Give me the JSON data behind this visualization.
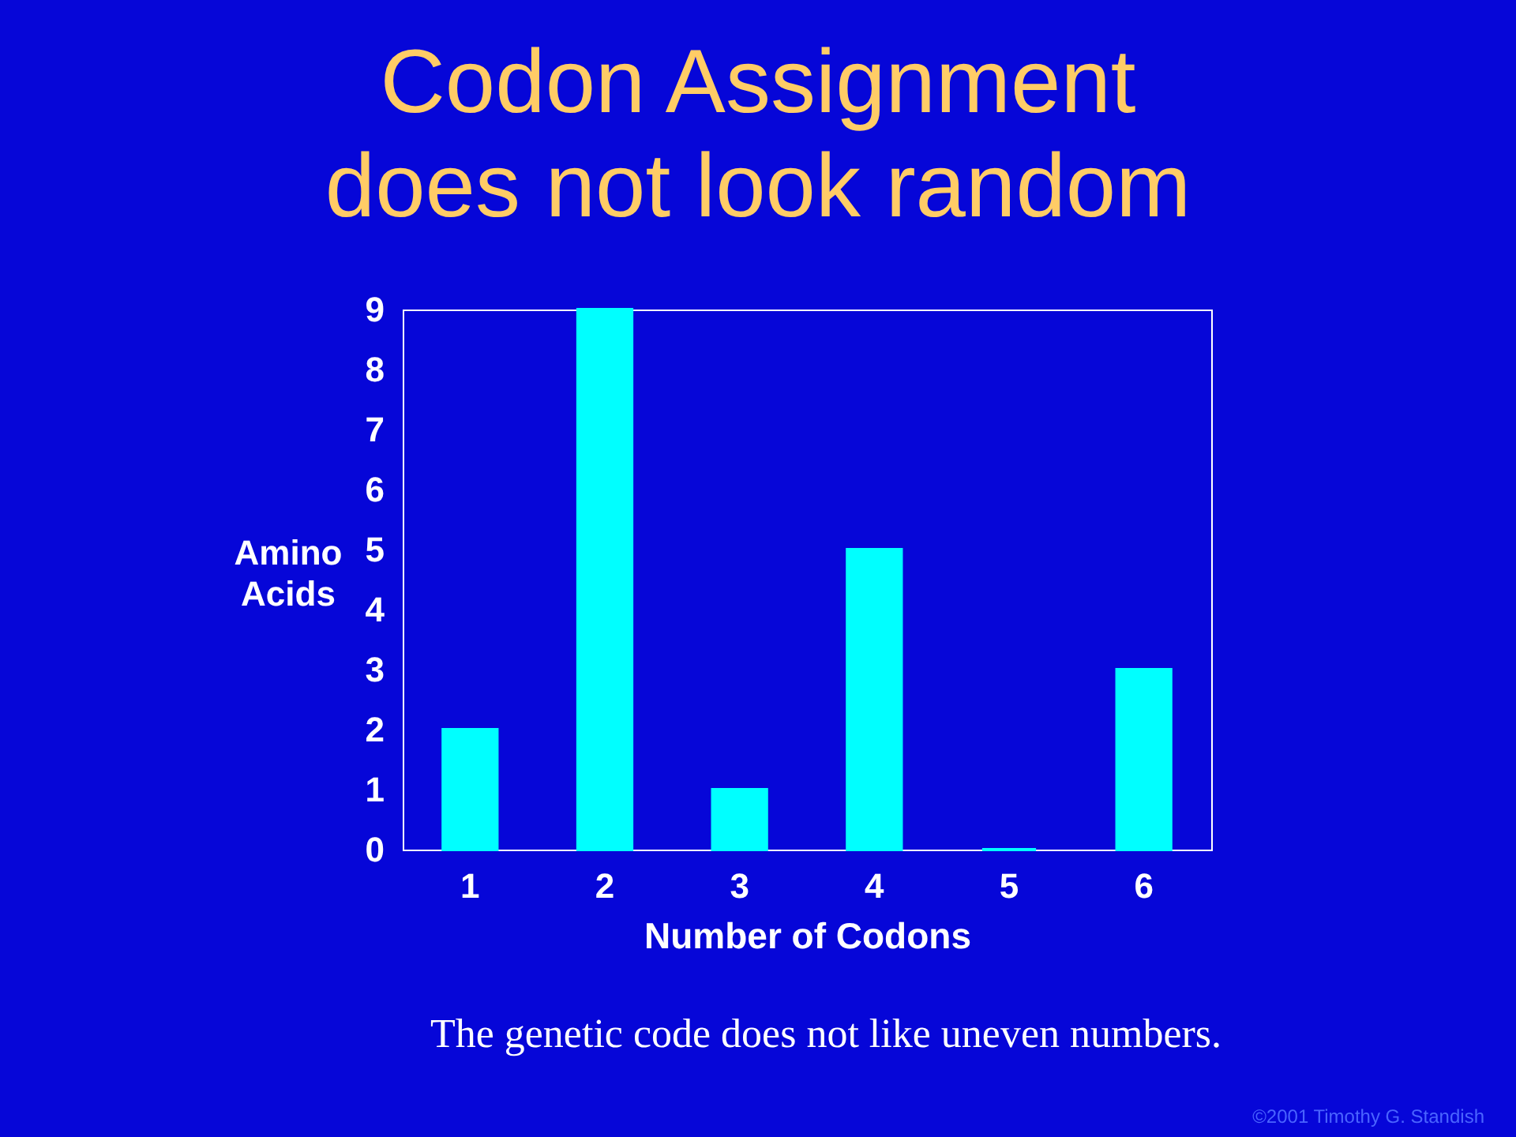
{
  "chart_data": {
    "type": "bar",
    "title": "Codon Assignment does not look random",
    "xlabel": "Number of Codons",
    "ylabel": "Amino Acids",
    "categories": [
      "1",
      "2",
      "3",
      "4",
      "5",
      "6"
    ],
    "values": [
      2,
      9,
      1,
      5,
      0,
      3
    ],
    "color": "#00ffff",
    "ylim": [
      0,
      9
    ],
    "yticks": [
      0,
      1,
      2,
      3,
      4,
      5,
      6,
      7,
      8,
      9
    ],
    "grid": false,
    "annotations": [
      "The genetic code does not like uneven numbers.",
      "©2001 Timothy G. Standish"
    ]
  }
}
